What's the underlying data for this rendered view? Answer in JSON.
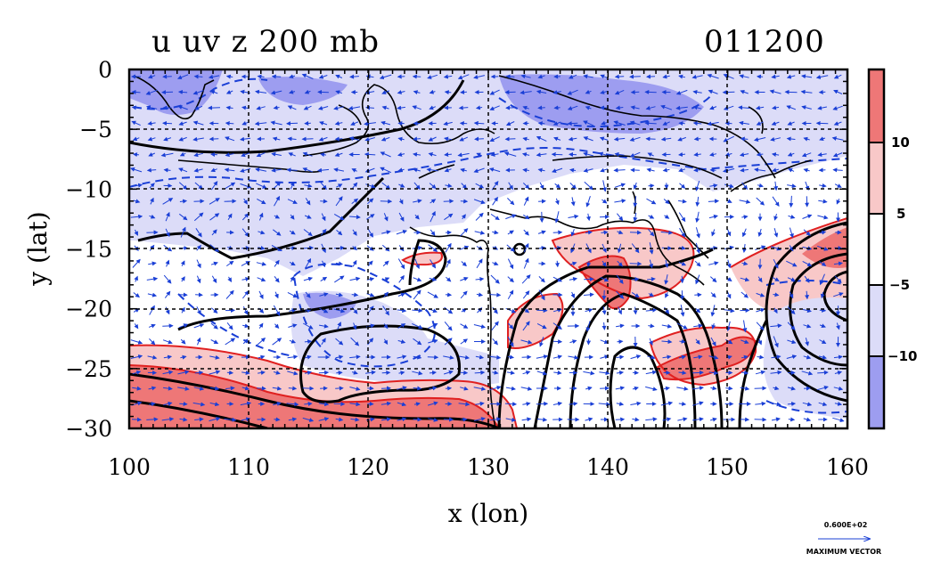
{
  "chart_data": {
    "type": "heatmap",
    "title": "u uv z 200 mb",
    "date_label": "011200",
    "xlabel": "x (lon)",
    "ylabel": "y (lat)",
    "xlim": [
      100,
      160
    ],
    "ylim": [
      -30,
      0
    ],
    "x_ticks": [
      100,
      110,
      120,
      130,
      140,
      150,
      160
    ],
    "y_ticks": [
      0,
      -5,
      -10,
      -15,
      -20,
      -25,
      -30
    ],
    "grid": true,
    "colorbar": {
      "tick_labels": [
        "10",
        "5",
        "−5",
        "−10"
      ],
      "levels": [
        {
          "range": "> 10",
          "color": "#ee7777"
        },
        {
          "range": "5 to 10",
          "color": "#f8c8c8"
        },
        {
          "range": "-5 to 5",
          "color": "#ffffff"
        },
        {
          "range": "-10 to -5",
          "color": "#dcdcf8"
        },
        {
          "range": "< -10",
          "color": "#9d9df0"
        }
      ]
    },
    "vector_legend": {
      "value": "0.600E+02",
      "label": "MAXIMUM VECTOR"
    },
    "colors": {
      "positive_contour": "#e02020",
      "negative_contour": "#1a3fd6",
      "height_contour": "#000000",
      "vectors": "#1a3fd6"
    }
  }
}
